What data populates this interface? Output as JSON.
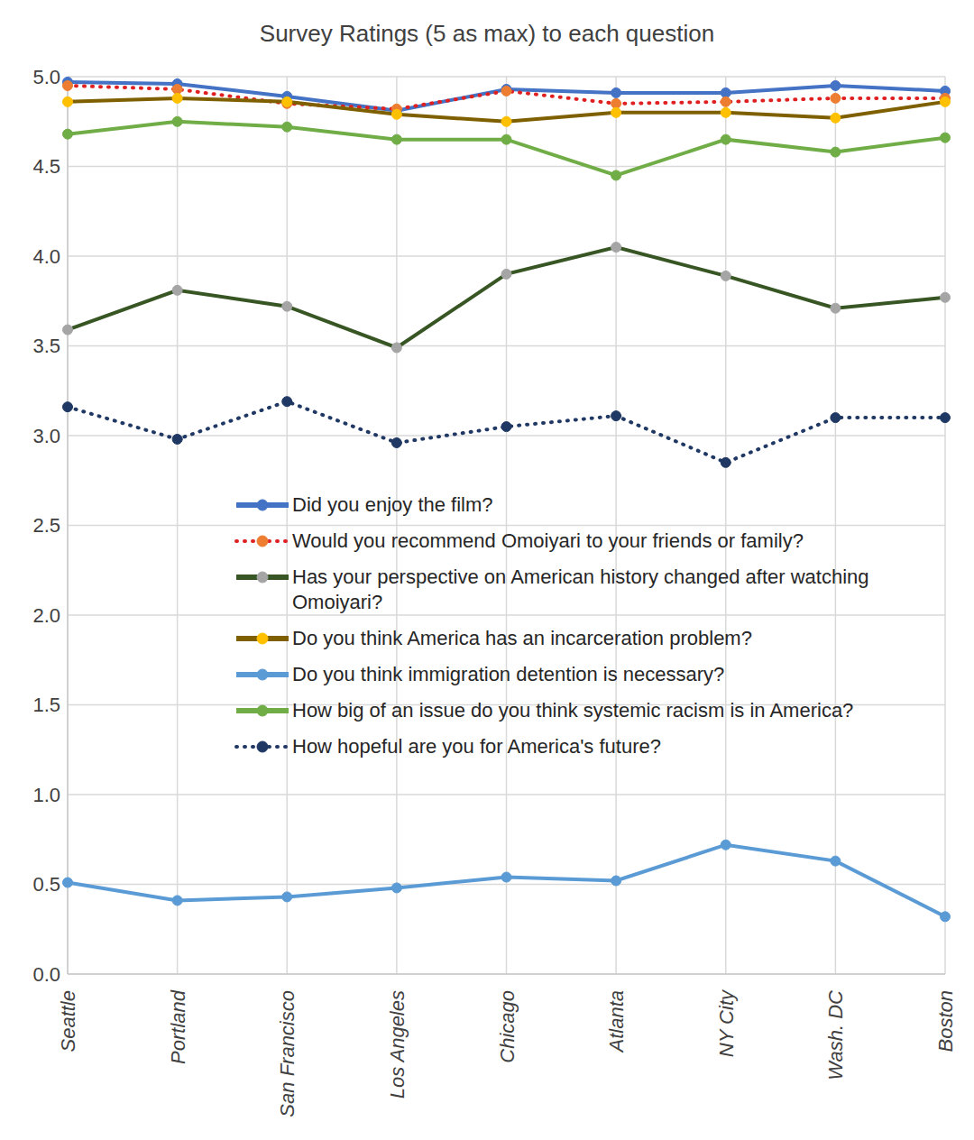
{
  "chart_data": {
    "type": "line",
    "title": "Survey Ratings (5 as max) to each question",
    "categories": [
      "Seattle",
      "Portland",
      "San Francisco",
      "Los Angeles",
      "Chicago",
      "Atlanta",
      "NY City",
      "Wash. DC",
      "Boston"
    ],
    "series": [
      {
        "name": "Did you enjoy the film?",
        "color": "#4472c4",
        "marker": "circle",
        "line_style": "solid",
        "values": [
          4.97,
          4.96,
          4.89,
          4.81,
          4.93,
          4.91,
          4.91,
          4.95,
          4.92
        ]
      },
      {
        "name": "Would you recommend Omoiyari to your friends or family?",
        "color": "#e02020",
        "marker": "circle",
        "line_style": "dotted",
        "values": [
          4.95,
          4.93,
          4.85,
          4.82,
          4.92,
          4.85,
          4.86,
          4.88,
          4.88
        ]
      },
      {
        "name": "Has your perspective on American history changed after watching Omoiyari?",
        "color": "#375623",
        "marker": "circle",
        "line_style": "solid",
        "values": [
          3.59,
          3.81,
          3.72,
          3.49,
          3.9,
          4.05,
          3.89,
          3.71,
          3.77
        ]
      },
      {
        "name": "Do you think America has an incarceration problem?",
        "color": "#7f6000",
        "marker": "circle",
        "line_style": "solid",
        "values": [
          4.86,
          4.88,
          4.86,
          4.79,
          4.75,
          4.8,
          4.8,
          4.77,
          4.86
        ]
      },
      {
        "name": "Do you think immigration detention is necessary?",
        "color": "#5b9bd5",
        "marker": "circle",
        "line_style": "solid",
        "values": [
          0.51,
          0.41,
          0.43,
          0.48,
          0.54,
          0.52,
          0.72,
          0.63,
          0.32
        ]
      },
      {
        "name": "How big of an issue do you think systemic racism is in America?",
        "color": "#70ad47",
        "marker": "circle",
        "line_style": "solid",
        "values": [
          4.68,
          4.75,
          4.72,
          4.65,
          4.65,
          4.45,
          4.65,
          4.58,
          4.66
        ]
      },
      {
        "name": "How hopeful are you for America's future?",
        "color": "#203864",
        "marker": "circle",
        "line_style": "dotted",
        "values": [
          3.16,
          2.98,
          3.19,
          2.96,
          3.05,
          3.11,
          2.85,
          3.1,
          3.1
        ]
      }
    ],
    "ylim": [
      0,
      5
    ],
    "yticks": [
      {
        "value": 0,
        "label": "0.0"
      },
      {
        "value": 0.5,
        "label": "0.5"
      },
      {
        "value": 1,
        "label": "1.0"
      },
      {
        "value": 1.5,
        "label": "1.5"
      },
      {
        "value": 2,
        "label": "2.0"
      },
      {
        "value": 2.5,
        "label": "2.5"
      },
      {
        "value": 3,
        "label": "3.0"
      },
      {
        "value": 3.5,
        "label": "3.5"
      },
      {
        "value": 4,
        "label": "4.0"
      },
      {
        "value": 4.5,
        "label": "4.5"
      },
      {
        "value": 5,
        "label": "5.0"
      }
    ],
    "grid": true,
    "legend": "center"
  }
}
